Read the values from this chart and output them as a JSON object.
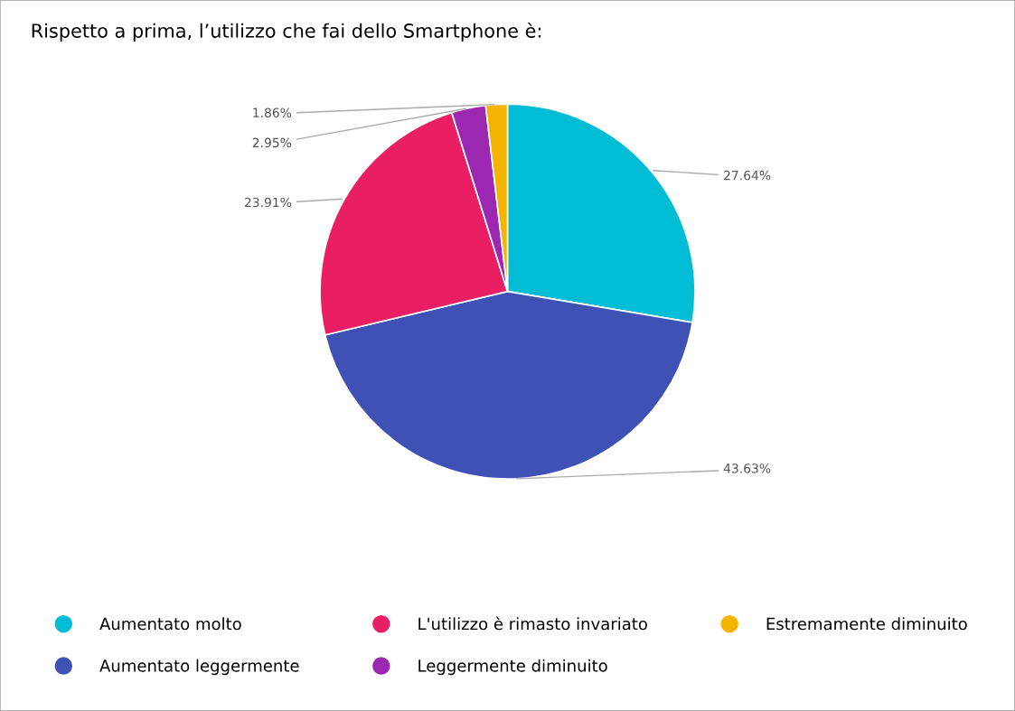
{
  "chart_data": {
    "type": "pie",
    "title": "Rispetto a prima, l’utilizzo che fai dello Smartphone è:",
    "categories": [
      "Aumentato molto",
      "Aumentato leggermente",
      "L'utilizzo è rimasto invariato",
      "Leggermente diminuito",
      "Estremamente diminuito"
    ],
    "values": [
      27.64,
      43.63,
      23.91,
      2.95,
      1.86
    ],
    "colors": [
      "#00bcd4",
      "#3f51b5",
      "#e91e63",
      "#9c27b0",
      "#f4b400"
    ],
    "value_labels": [
      "27.64%",
      "43.63%",
      "23.91%",
      "2.95%",
      "1.86%"
    ],
    "legend": "bottom"
  }
}
